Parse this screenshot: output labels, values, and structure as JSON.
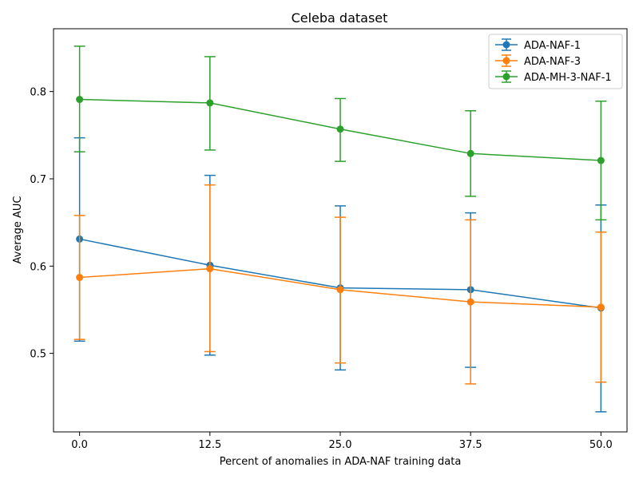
{
  "chart_data": {
    "type": "line",
    "title": "Celeba dataset",
    "xlabel": "Percent of anomalies in ADA-NAF training data",
    "ylabel": "Average AUC",
    "x": [
      0.0,
      12.5,
      25.0,
      37.5,
      50.0
    ],
    "x_tick_labels": [
      "0.0",
      "12.5",
      "25.0",
      "37.5",
      "50.0"
    ],
    "xlim": [
      -2.5,
      52.5
    ],
    "ylim": [
      0.41,
      0.872
    ],
    "y_ticks": [
      0.5,
      0.6,
      0.7,
      0.8
    ],
    "y_tick_labels": [
      "0.5",
      "0.6",
      "0.7",
      "0.8"
    ],
    "grid": false,
    "legend_position": "top-right",
    "error_bars": true,
    "series": [
      {
        "name": "ADA-NAF-1",
        "color": "#1f77b4",
        "values": [
          0.631,
          0.601,
          0.575,
          0.573,
          0.552
        ],
        "err_low": [
          0.514,
          0.498,
          0.481,
          0.484,
          0.433
        ],
        "err_high": [
          0.747,
          0.704,
          0.669,
          0.661,
          0.67
        ]
      },
      {
        "name": "ADA-NAF-3",
        "color": "#ff7f0e",
        "values": [
          0.587,
          0.597,
          0.573,
          0.559,
          0.553
        ],
        "err_low": [
          0.516,
          0.502,
          0.489,
          0.465,
          0.467
        ],
        "err_high": [
          0.658,
          0.693,
          0.656,
          0.653,
          0.639
        ]
      },
      {
        "name": "ADA-MH-3-NAF-1",
        "color": "#2ca02c",
        "values": [
          0.791,
          0.787,
          0.757,
          0.729,
          0.721
        ],
        "err_low": [
          0.731,
          0.733,
          0.72,
          0.68,
          0.653
        ],
        "err_high": [
          0.852,
          0.84,
          0.792,
          0.778,
          0.789
        ]
      }
    ]
  }
}
